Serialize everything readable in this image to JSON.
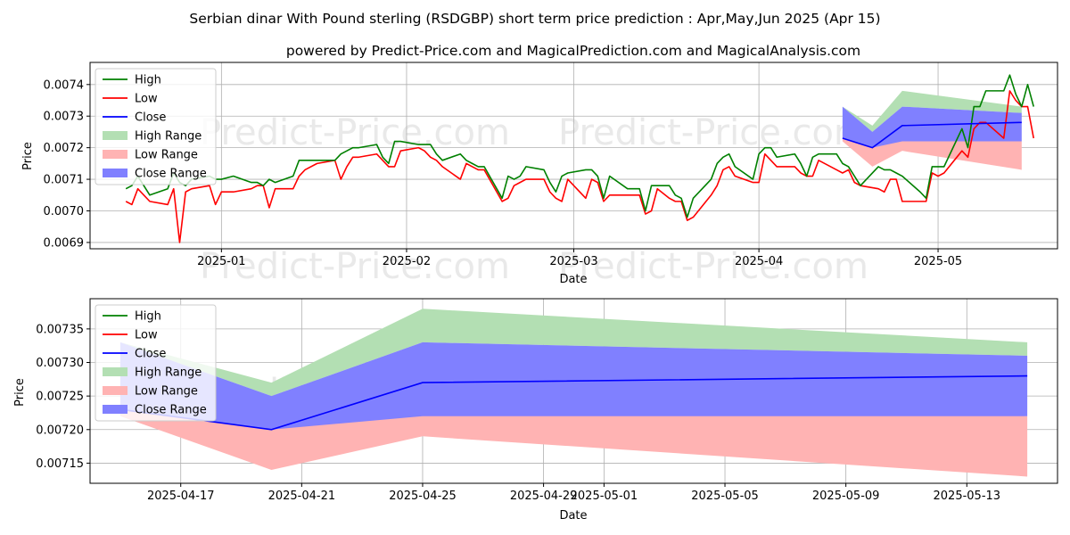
{
  "title": "Serbian dinar With Pound sterling (RSDGBP) short term price prediction : Apr,May,Jun 2025 (Apr 15)",
  "subtitle": "powered by Predict-Price.com and MagicalPrediction.com and MagicalAnalysis.com",
  "watermark": "Predict-Price.com",
  "colors": {
    "high": "#008000",
    "low": "#ff0000",
    "close": "#0000ff",
    "high_range": "#b3dfb3",
    "low_range": "#ffb3b3",
    "close_range": "#8080ff"
  },
  "legend": [
    "High",
    "Low",
    "Close",
    "High Range",
    "Low Range",
    "Close Range"
  ],
  "chart_data": [
    {
      "type": "line",
      "xlabel": "Date",
      "ylabel": "Price",
      "xlim": [
        "2024-12-10",
        "2025-05-21"
      ],
      "ylim": [
        0.00688,
        0.00747
      ],
      "x_ticks": [
        "2025-01",
        "2025-02",
        "2025-03",
        "2025-04",
        "2025-05"
      ],
      "x_tick_dates": [
        "2025-01-01",
        "2025-02-01",
        "2025-03-01",
        "2025-04-01",
        "2025-05-01"
      ],
      "y_ticks": [
        0.0069,
        0.007,
        0.0071,
        0.0072,
        0.0073,
        0.0074
      ],
      "y_tick_labels": [
        "0.0069",
        "0.0070",
        "0.0071",
        "0.0072",
        "0.0073",
        "0.0074"
      ],
      "history": [
        [
          "2024-12-16",
          0.00707,
          0.00703
        ],
        [
          "2024-12-17",
          0.00708,
          0.00702
        ],
        [
          "2024-12-18",
          0.00711,
          0.00707
        ],
        [
          "2024-12-19",
          0.00708,
          0.00705
        ],
        [
          "2024-12-20",
          0.00705,
          0.00703
        ],
        [
          "2024-12-23",
          0.00707,
          0.00702
        ],
        [
          "2024-12-24",
          0.00712,
          0.00707
        ],
        [
          "2024-12-25",
          0.00709,
          0.0069
        ],
        [
          "2024-12-26",
          0.00708,
          0.00706
        ],
        [
          "2024-12-27",
          0.0071,
          0.00707
        ],
        [
          "2024-12-30",
          0.00711,
          0.00708
        ],
        [
          "2024-12-31",
          0.0071,
          0.00702
        ],
        [
          "2025-01-01",
          0.0071,
          0.00706
        ],
        [
          "2025-01-03",
          0.00711,
          0.00706
        ],
        [
          "2025-01-06",
          0.00709,
          0.00707
        ],
        [
          "2025-01-07",
          0.00709,
          0.00708
        ],
        [
          "2025-01-08",
          0.00708,
          0.00708
        ],
        [
          "2025-01-09",
          0.0071,
          0.00701
        ],
        [
          "2025-01-10",
          0.00709,
          0.00707
        ],
        [
          "2025-01-13",
          0.00711,
          0.00707
        ],
        [
          "2025-01-14",
          0.00716,
          0.00711
        ],
        [
          "2025-01-15",
          0.00716,
          0.00713
        ],
        [
          "2025-01-17",
          0.00716,
          0.00715
        ],
        [
          "2025-01-20",
          0.00716,
          0.00716
        ],
        [
          "2025-01-21",
          0.00718,
          0.0071
        ],
        [
          "2025-01-22",
          0.00719,
          0.00714
        ],
        [
          "2025-01-23",
          0.0072,
          0.00717
        ],
        [
          "2025-01-24",
          0.0072,
          0.00717
        ],
        [
          "2025-01-27",
          0.00721,
          0.00718
        ],
        [
          "2025-01-28",
          0.00717,
          0.00716
        ],
        [
          "2025-01-29",
          0.00715,
          0.00714
        ],
        [
          "2025-01-30",
          0.00722,
          0.00714
        ],
        [
          "2025-01-31",
          0.00722,
          0.00719
        ],
        [
          "2025-02-03",
          0.00721,
          0.0072
        ],
        [
          "2025-02-04",
          0.00721,
          0.00719
        ],
        [
          "2025-02-05",
          0.00721,
          0.00717
        ],
        [
          "2025-02-06",
          0.00718,
          0.00716
        ],
        [
          "2025-02-07",
          0.00716,
          0.00714
        ],
        [
          "2025-02-10",
          0.00718,
          0.0071
        ],
        [
          "2025-02-11",
          0.00716,
          0.00715
        ],
        [
          "2025-02-12",
          0.00715,
          0.00714
        ],
        [
          "2025-02-13",
          0.00714,
          0.00713
        ],
        [
          "2025-02-14",
          0.00714,
          0.00713
        ],
        [
          "2025-02-17",
          0.00704,
          0.00703
        ],
        [
          "2025-02-18",
          0.00711,
          0.00704
        ],
        [
          "2025-02-19",
          0.0071,
          0.00708
        ],
        [
          "2025-02-20",
          0.00711,
          0.00709
        ],
        [
          "2025-02-21",
          0.00714,
          0.0071
        ],
        [
          "2025-02-24",
          0.00713,
          0.0071
        ],
        [
          "2025-02-25",
          0.00709,
          0.00706
        ],
        [
          "2025-02-26",
          0.00706,
          0.00704
        ],
        [
          "2025-02-27",
          0.00711,
          0.00703
        ],
        [
          "2025-02-28",
          0.00712,
          0.0071
        ],
        [
          "2025-03-03",
          0.00713,
          0.00704
        ],
        [
          "2025-03-04",
          0.00713,
          0.0071
        ],
        [
          "2025-03-05",
          0.00711,
          0.00709
        ],
        [
          "2025-03-06",
          0.00704,
          0.00703
        ],
        [
          "2025-03-07",
          0.00711,
          0.00705
        ],
        [
          "2025-03-10",
          0.00707,
          0.00705
        ],
        [
          "2025-03-11",
          0.00707,
          0.00705
        ],
        [
          "2025-03-12",
          0.00707,
          0.00705
        ],
        [
          "2025-03-13",
          0.007,
          0.00699
        ],
        [
          "2025-03-14",
          0.00708,
          0.007
        ],
        [
          "2025-03-15",
          0.00708,
          0.00707
        ],
        [
          "2025-03-17",
          0.00708,
          0.00704
        ],
        [
          "2025-03-18",
          0.00705,
          0.00703
        ],
        [
          "2025-03-19",
          0.00704,
          0.00703
        ],
        [
          "2025-03-20",
          0.00698,
          0.00697
        ],
        [
          "2025-03-21",
          0.00704,
          0.00698
        ],
        [
          "2025-03-24",
          0.0071,
          0.00705
        ],
        [
          "2025-03-25",
          0.00715,
          0.00708
        ],
        [
          "2025-03-26",
          0.00717,
          0.00713
        ],
        [
          "2025-03-27",
          0.00718,
          0.00714
        ],
        [
          "2025-03-28",
          0.00714,
          0.00711
        ],
        [
          "2025-03-31",
          0.0071,
          0.00709
        ],
        [
          "2025-04-01",
          0.00718,
          0.00709
        ],
        [
          "2025-04-02",
          0.0072,
          0.00718
        ],
        [
          "2025-04-03",
          0.0072,
          0.00716
        ],
        [
          "2025-04-04",
          0.00717,
          0.00714
        ],
        [
          "2025-04-07",
          0.00718,
          0.00714
        ],
        [
          "2025-04-08",
          0.00715,
          0.00712
        ],
        [
          "2025-04-09",
          0.00711,
          0.00711
        ],
        [
          "2025-04-10",
          0.00717,
          0.00711
        ],
        [
          "2025-04-11",
          0.00718,
          0.00716
        ],
        [
          "2025-04-14",
          0.00718,
          0.00713
        ],
        [
          "2025-04-15",
          0.00715,
          0.00712
        ],
        [
          "2025-04-16",
          0.00714,
          0.00713
        ],
        [
          "2025-04-17",
          0.00711,
          0.00709
        ],
        [
          "2025-04-18",
          0.00708,
          0.00708
        ],
        [
          "2025-04-21",
          0.00714,
          0.00707
        ],
        [
          "2025-04-22",
          0.00713,
          0.00706
        ],
        [
          "2025-04-23",
          0.00713,
          0.0071
        ],
        [
          "2025-04-24",
          0.00712,
          0.0071
        ],
        [
          "2025-04-25",
          0.00711,
          0.00703
        ],
        [
          "2025-04-28",
          0.00706,
          0.00703
        ],
        [
          "2025-04-29",
          0.00704,
          0.00703
        ],
        [
          "2025-04-30",
          0.00714,
          0.00712
        ],
        [
          "2025-05-01",
          0.00714,
          0.00711
        ],
        [
          "2025-05-02",
          0.00714,
          0.00712
        ],
        [
          "2025-05-05",
          0.00726,
          0.00719
        ],
        [
          "2025-05-06",
          0.0072,
          0.00717
        ],
        [
          "2025-05-07",
          0.00733,
          0.00726
        ],
        [
          "2025-05-08",
          0.00733,
          0.00728
        ],
        [
          "2025-05-09",
          0.00738,
          0.00728
        ],
        [
          "2025-05-12",
          0.00738,
          0.00723
        ],
        [
          "2025-05-13",
          0.00743,
          0.00738
        ],
        [
          "2025-05-14",
          0.00737,
          0.00735
        ],
        [
          "2025-05-15",
          0.00733,
          0.00733
        ],
        [
          "2025-05-16",
          0.0074,
          0.00733
        ],
        [
          "2025-05-17",
          0.00733,
          0.00723
        ]
      ]
    },
    {
      "type": "area",
      "xlabel": "Date",
      "ylabel": "Price",
      "xlim": [
        "2025-04-14",
        "2025-05-16"
      ],
      "ylim": [
        0.00712,
        0.007395
      ],
      "x_ticks": [
        "2025-04-17",
        "2025-04-21",
        "2025-04-25",
        "2025-04-29",
        "2025-05-01",
        "2025-05-05",
        "2025-05-09",
        "2025-05-13"
      ],
      "y_ticks": [
        0.00715,
        0.0072,
        0.00725,
        0.0073,
        0.00735
      ],
      "y_tick_labels": [
        "0.00715",
        "0.00720",
        "0.00725",
        "0.00730",
        "0.00735"
      ],
      "forecast": {
        "dates": [
          "2025-04-15",
          "2025-04-20",
          "2025-04-25",
          "2025-05-15"
        ],
        "high_range": [
          [
            0.00733,
            0.00733
          ],
          [
            0.00725,
            0.00727
          ],
          [
            0.00733,
            0.00738
          ],
          [
            0.00731,
            0.00733
          ]
        ],
        "low_range": [
          [
            0.00722,
            0.00725
          ],
          [
            0.00714,
            0.00721
          ],
          [
            0.00719,
            0.00727
          ],
          [
            0.00713,
            0.00722
          ]
        ],
        "close_range": [
          [
            0.00723,
            0.00733
          ],
          [
            0.0072,
            0.00725
          ],
          [
            0.00722,
            0.00733
          ],
          [
            0.00722,
            0.00731
          ]
        ],
        "close": [
          0.00723,
          0.0072,
          0.00727,
          0.00728
        ]
      }
    }
  ]
}
